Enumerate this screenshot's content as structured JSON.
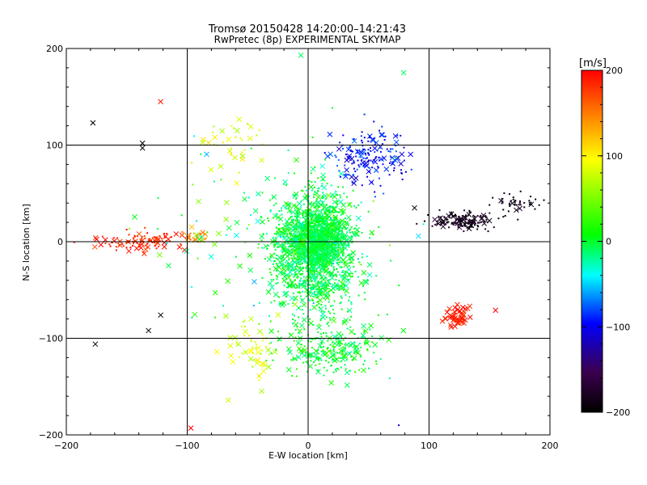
{
  "chart_data": {
    "type": "scatter",
    "title": "Tromsø 20150428 14:20:00–14:21:43",
    "subtitle": "RwPretec (8p) EXPERIMENTAL SKYMAP",
    "xlabel": "E-W location [km]",
    "ylabel": "N-S location [km]",
    "xlim": [
      -200,
      200
    ],
    "ylim": [
      -200,
      200
    ],
    "xticks": [
      "-200",
      "-100",
      "0",
      "100",
      "200"
    ],
    "yticks": [
      "-200",
      "-100",
      "0",
      "100",
      "200"
    ],
    "grid": true,
    "colorbar": {
      "label": "[m/s]",
      "range": [
        -200,
        200
      ],
      "ticks": [
        "200",
        "100",
        "0",
        "-100",
        "-200"
      ],
      "colormap": [
        "#000000",
        "#3c0050",
        "#0000ff",
        "#00ffff",
        "#00ff00",
        "#ffff00",
        "#ff0000"
      ]
    },
    "markers": {
      "dot": "meteor echo (dot)",
      "cross": "meteor echo (x)"
    },
    "clusters": [
      {
        "name": "central-cloud",
        "center": [
          5,
          -10
        ],
        "spread": [
          28,
          50
        ],
        "count": 1500,
        "velocity": [
          -30,
          20
        ],
        "marker_mix": 0.25
      },
      {
        "name": "core",
        "center": [
          10,
          5
        ],
        "spread": [
          18,
          22
        ],
        "count": 500,
        "velocity": [
          -20,
          15
        ],
        "marker_mix": 0.3
      },
      {
        "name": "south-lobe",
        "center": [
          20,
          -110
        ],
        "spread": [
          35,
          25
        ],
        "count": 250,
        "velocity": [
          -20,
          30
        ],
        "marker_mix": 0.3
      },
      {
        "name": "north-east-blue",
        "center": [
          50,
          85
        ],
        "spread": [
          25,
          25
        ],
        "count": 180,
        "velocity": [
          -120,
          -70
        ],
        "marker_mix": 0.3
      },
      {
        "name": "east-band-dark",
        "center": [
          125,
          22
        ],
        "spread": [
          20,
          8
        ],
        "count": 150,
        "velocity": [
          -200,
          -165
        ],
        "marker_mix": 0.25
      },
      {
        "name": "far-east-dark",
        "center": [
          170,
          40
        ],
        "spread": [
          18,
          10
        ],
        "count": 40,
        "velocity": [
          -200,
          -175
        ],
        "marker_mix": 0.1
      },
      {
        "name": "west-red-band",
        "center": [
          -135,
          0
        ],
        "spread": [
          28,
          9
        ],
        "count": 110,
        "velocity": [
          170,
          200
        ],
        "marker_mix": 0.3
      },
      {
        "name": "west-orange",
        "center": [
          -95,
          5
        ],
        "spread": [
          10,
          6
        ],
        "count": 30,
        "velocity": [
          120,
          160
        ],
        "marker_mix": 0.4
      },
      {
        "name": "south-east-red",
        "center": [
          122,
          -78
        ],
        "spread": [
          9,
          10
        ],
        "count": 45,
        "velocity": [
          175,
          200
        ],
        "marker_mix": 0.95
      },
      {
        "name": "south-west-yellow",
        "center": [
          -45,
          -110
        ],
        "spread": [
          18,
          22
        ],
        "count": 60,
        "velocity": [
          60,
          110
        ],
        "marker_mix": 0.5
      },
      {
        "name": "north-yellow",
        "center": [
          -60,
          100
        ],
        "spread": [
          25,
          25
        ],
        "count": 40,
        "velocity": [
          60,
          110
        ],
        "marker_mix": 0.4
      },
      {
        "name": "scattered-background",
        "center": [
          -20,
          0
        ],
        "spread": [
          85,
          85
        ],
        "count": 140,
        "velocity": [
          -60,
          60
        ],
        "marker_mix": 0.4
      }
    ],
    "sample_points": [
      {
        "x": -178,
        "y": 123,
        "v": -200,
        "marker": "cross"
      },
      {
        "x": -137,
        "y": 102,
        "v": -200,
        "marker": "cross"
      },
      {
        "x": -137,
        "y": 97,
        "v": -200,
        "marker": "cross"
      },
      {
        "x": -122,
        "y": 145,
        "v": 190,
        "marker": "cross"
      },
      {
        "x": -122,
        "y": -76,
        "v": -200,
        "marker": "cross"
      },
      {
        "x": -132,
        "y": -92,
        "v": -200,
        "marker": "cross"
      },
      {
        "x": -176,
        "y": -106,
        "v": -200,
        "marker": "cross"
      },
      {
        "x": -97,
        "y": -193,
        "v": 200,
        "marker": "cross"
      },
      {
        "x": 79,
        "y": 175,
        "v": -10,
        "marker": "cross"
      },
      {
        "x": -6,
        "y": 193,
        "v": -10,
        "marker": "cross"
      },
      {
        "x": 115,
        "y": -73,
        "v": 195,
        "marker": "cross"
      },
      {
        "x": 128,
        "y": -68,
        "v": 200,
        "marker": "cross"
      },
      {
        "x": 155,
        "y": -71,
        "v": 200,
        "marker": "cross"
      },
      {
        "x": 130,
        "y": 25,
        "v": -200,
        "marker": "dot"
      },
      {
        "x": 150,
        "y": 38,
        "v": -200,
        "marker": "dot"
      },
      {
        "x": 195,
        "y": 43,
        "v": -200,
        "marker": "dot"
      },
      {
        "x": 88,
        "y": 35,
        "v": -200,
        "marker": "cross"
      },
      {
        "x": 15,
        "y": 0,
        "v": 0,
        "marker": "cross"
      },
      {
        "x": -66,
        "y": -164,
        "v": 80,
        "marker": "cross"
      },
      {
        "x": 75,
        "y": -190,
        "v": -110,
        "marker": "dot"
      }
    ]
  }
}
